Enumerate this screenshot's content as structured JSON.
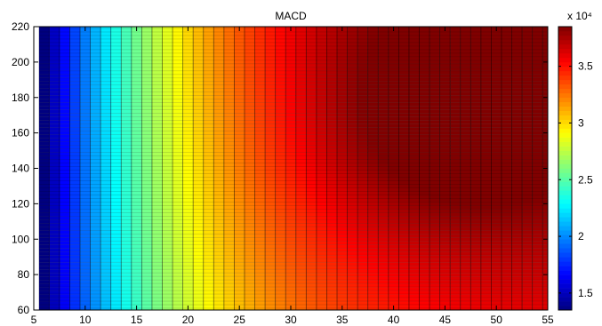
{
  "chart_data": {
    "type": "heatmap",
    "title": "MACD",
    "xlabel": "",
    "ylabel": "",
    "xlim": [
      5,
      55
    ],
    "ylim": [
      60,
      220
    ],
    "x_ticks": [
      5,
      10,
      15,
      20,
      25,
      30,
      35,
      40,
      45,
      50,
      55
    ],
    "y_ticks": [
      60,
      80,
      100,
      120,
      140,
      160,
      180,
      200,
      220
    ],
    "x_range": [
      6,
      55
    ],
    "y_range": [
      60,
      220
    ],
    "colorbar": {
      "label": "x 10⁴",
      "multiplier_exponent": "4",
      "min": 13500,
      "max": 38500,
      "ticks": [
        1.5,
        2,
        2.5,
        3,
        3.5
      ],
      "colormap": "jet"
    },
    "z_description_samples": [
      {
        "x": 6,
        "y": 60,
        "value": 13500
      },
      {
        "x": 6,
        "y": 220,
        "value": 16000
      },
      {
        "x": 15,
        "y": 140,
        "value": 24000
      },
      {
        "x": 25,
        "y": 220,
        "value": 33000
      },
      {
        "x": 25,
        "y": 60,
        "value": 29000
      },
      {
        "x": 45,
        "y": 170,
        "value": 38500
      },
      {
        "x": 55,
        "y": 200,
        "value": 38000
      },
      {
        "x": 55,
        "y": 60,
        "value": 31500
      }
    ]
  }
}
